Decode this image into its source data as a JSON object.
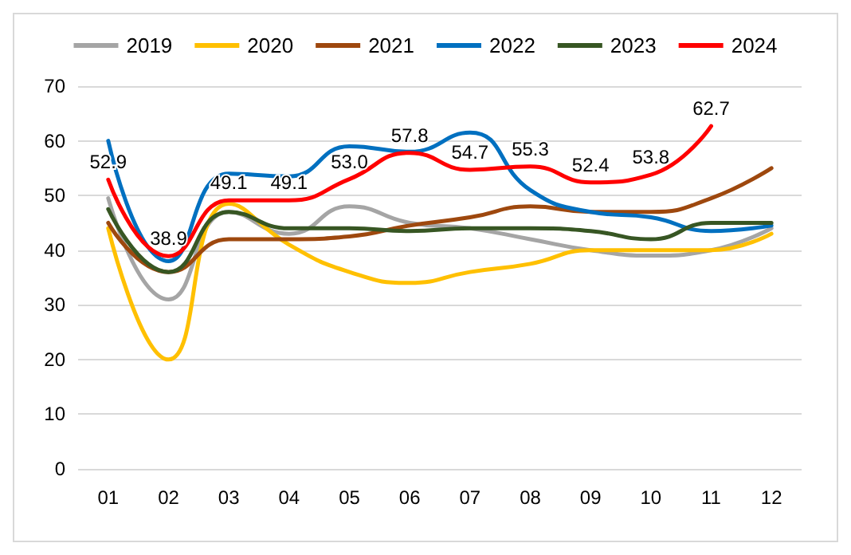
{
  "chart_data": {
    "type": "line",
    "categories": [
      "01",
      "02",
      "03",
      "04",
      "05",
      "06",
      "07",
      "08",
      "09",
      "10",
      "11",
      "12"
    ],
    "series": [
      {
        "name": "2019",
        "color": "#a5a5a5",
        "values": [
          49.5,
          31,
          47,
          43,
          48,
          45,
          44,
          42,
          40,
          39,
          40,
          44
        ]
      },
      {
        "name": "2020",
        "color": "#ffc000",
        "values": [
          44,
          20,
          48.5,
          41,
          36,
          34,
          36,
          37.5,
          40,
          40,
          40,
          43
        ]
      },
      {
        "name": "2021",
        "color": "#9e480e",
        "values": [
          45,
          36,
          42,
          42,
          42.5,
          44.5,
          46,
          48,
          47,
          47,
          49.5,
          55
        ]
      },
      {
        "name": "2022",
        "color": "#0070c0",
        "values": [
          60,
          38,
          54,
          53.5,
          59,
          58,
          61.5,
          51,
          47,
          46,
          43.5,
          44.5
        ]
      },
      {
        "name": "2023",
        "color": "#375623",
        "values": [
          47.5,
          36,
          47,
          44,
          44,
          43.5,
          44,
          44,
          43.5,
          42,
          45,
          45
        ]
      },
      {
        "name": "2024",
        "color": "#ff0000",
        "values": [
          52.9,
          38.9,
          49.1,
          49.1,
          53.0,
          57.8,
          54.7,
          55.3,
          52.4,
          53.8,
          62.7,
          null
        ],
        "value_labels": [
          "52.9",
          "38.9",
          "49.1",
          "49.1",
          "53.0",
          "57.8",
          "54.7",
          "55.3",
          "52.4",
          "53.8",
          "62.7",
          null
        ]
      }
    ],
    "ylim": [
      0,
      70
    ],
    "yticks": [
      0,
      10,
      20,
      30,
      40,
      50,
      60,
      70
    ],
    "grid": "y",
    "legend": "top",
    "marker": "none",
    "line_style": "solid"
  }
}
